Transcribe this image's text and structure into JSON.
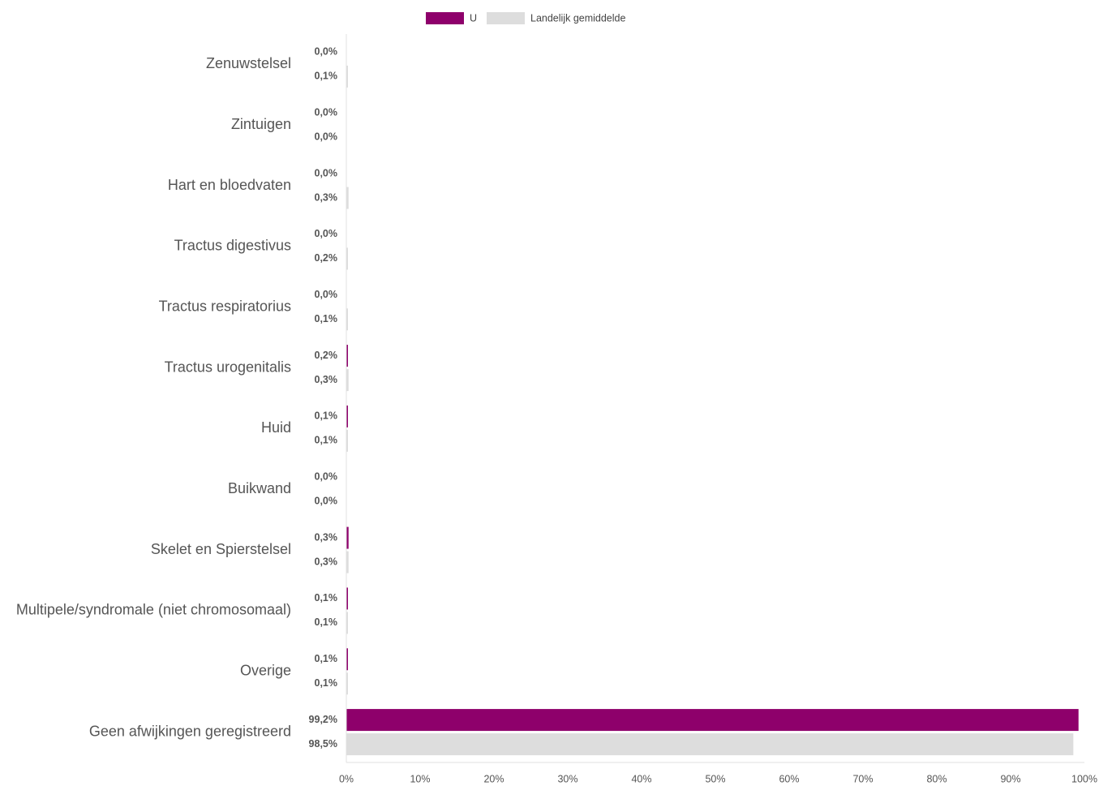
{
  "chart_data": {
    "type": "bar",
    "orientation": "horizontal",
    "categories": [
      "Zenuwstelsel",
      "Zintuigen",
      "Hart en bloedvaten",
      "Tractus digestivus",
      "Tractus respiratorius",
      "Tractus urogenitalis",
      "Huid",
      "Buikwand",
      "Skelet en Spierstelsel",
      "Multipele/syndromale (niet chromosomaal)",
      "Overige",
      "Geen afwijkingen geregistreerd"
    ],
    "series": [
      {
        "name": "U",
        "color": "#8e006b",
        "values": [
          0.0,
          0.0,
          0.0,
          0.0,
          0.0,
          0.2,
          0.1,
          0.0,
          0.3,
          0.1,
          0.1,
          99.2
        ],
        "labels": [
          "0,0%",
          "0,0%",
          "0,0%",
          "0,0%",
          "0,0%",
          "0,2%",
          "0,1%",
          "0,0%",
          "0,3%",
          "0,1%",
          "0,1%",
          "99,2%"
        ]
      },
      {
        "name": "Landelijk gemiddelde",
        "color": "#dddddd",
        "values": [
          0.1,
          0.0,
          0.3,
          0.2,
          0.1,
          0.3,
          0.1,
          0.0,
          0.3,
          0.1,
          0.1,
          98.5
        ],
        "labels": [
          "0,1%",
          "0,0%",
          "0,3%",
          "0,2%",
          "0,1%",
          "0,3%",
          "0,1%",
          "0,0%",
          "0,3%",
          "0,1%",
          "0,1%",
          "98,5%"
        ]
      }
    ],
    "x_ticks": [
      "0%",
      "10%",
      "20%",
      "30%",
      "40%",
      "50%",
      "60%",
      "70%",
      "80%",
      "90%",
      "100%"
    ],
    "xlim": [
      0,
      100
    ],
    "legend_position": "top-center",
    "grid": false,
    "title": "",
    "xlabel": "",
    "ylabel": ""
  }
}
